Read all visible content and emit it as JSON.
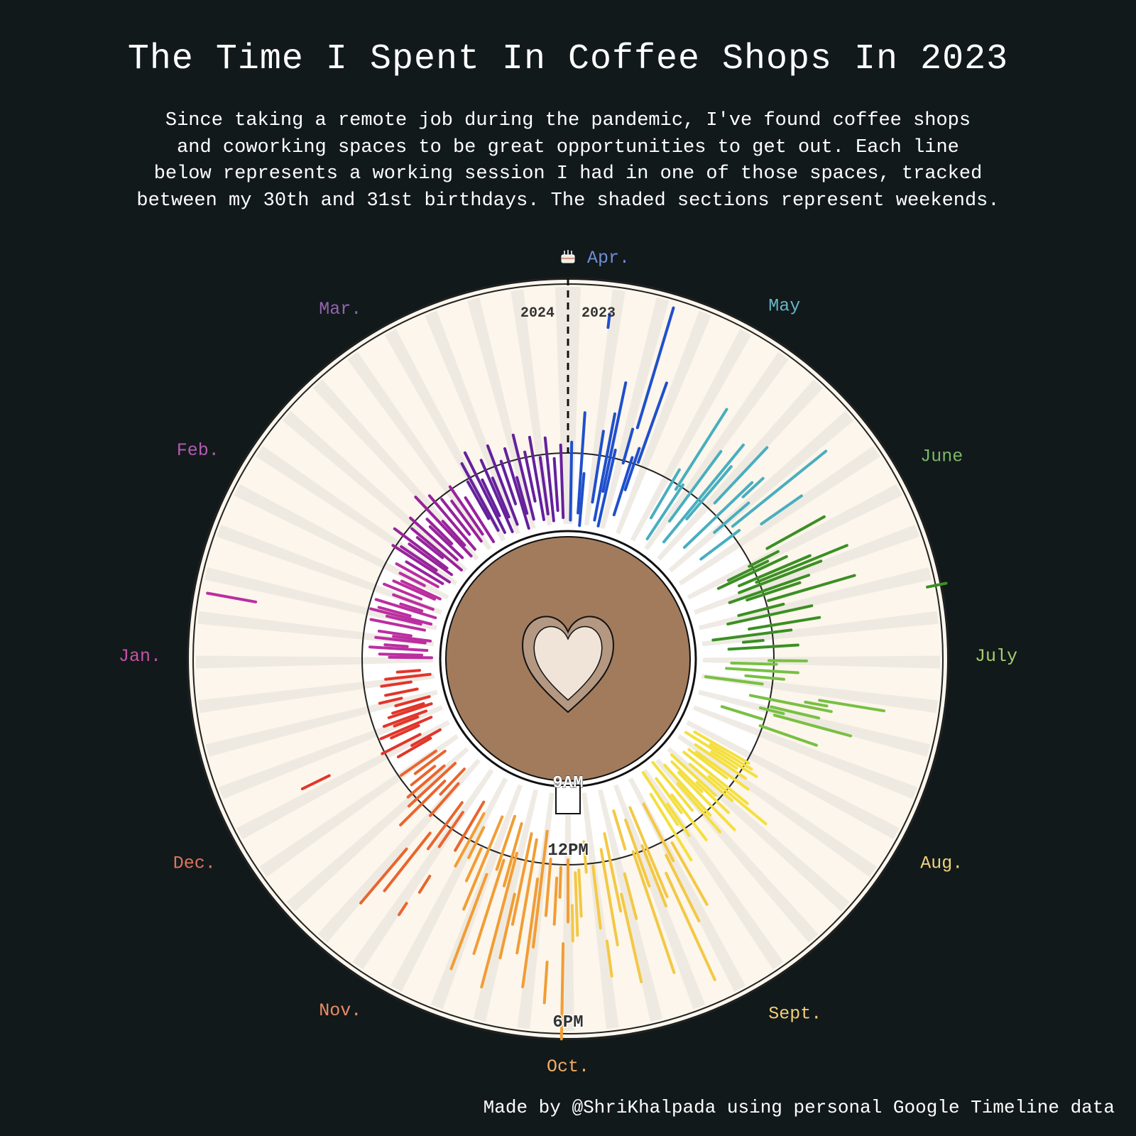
{
  "title": "The Time I Spent In Coffee Shops In 2023",
  "subtitle_lines": [
    "Since taking a remote job during the pandemic, I've found coffee shops",
    "and coworking spaces to be great opportunities to get out. Each line",
    "below represents a working session I had in one of those spaces, tracked",
    "between my 30th and 31st birthdays. The shaded sections represent weekends."
  ],
  "footer": "Made by @ShriKhalpada using personal Google Timeline data",
  "colors": {
    "background": "#12191b",
    "dial_face": "#fcf6ec",
    "weekend_shade": "#ece8df",
    "inner_face": "#ffffff",
    "inner_weekend": "#efefef",
    "cup": "#a27b5c",
    "heart_outer": "#b49882",
    "heart_inner": "#f0e4d9"
  },
  "chart_data": {
    "type": "radial-timeline",
    "angular_axis": "day of year, clockwise from the birthday at top (Apr. 2023 → Mar. 2024)",
    "radial_axis": "time of day",
    "year_labels": {
      "left": "2024",
      "right": "2023"
    },
    "birthday_icon": "birthday-cake-icon",
    "time_labels": [
      "9AM",
      "12PM",
      "6PM"
    ],
    "time_hours": [
      9,
      12,
      18
    ],
    "month_labels": [
      {
        "label": "Apr.",
        "color": "#6f8fd6",
        "day": 0
      },
      {
        "label": "May",
        "color": "#66b6c8",
        "day": 30
      },
      {
        "label": "June",
        "color": "#7cb867",
        "day": 61
      },
      {
        "label": "July",
        "color": "#a5cf6e",
        "day": 91
      },
      {
        "label": "Aug.",
        "color": "#f0d37a",
        "day": 122
      },
      {
        "label": "Sept.",
        "color": "#f2cd76",
        "day": 153
      },
      {
        "label": "Oct.",
        "color": "#f3ae63",
        "day": 183
      },
      {
        "label": "Nov.",
        "color": "#ec8d63",
        "day": 214
      },
      {
        "label": "Dec.",
        "color": "#e0735e",
        "day": 244
      },
      {
        "label": "Jan.",
        "color": "#c552a7",
        "day": 275
      },
      {
        "label": "Feb.",
        "color": "#b35bb2",
        "day": 306
      },
      {
        "label": "Mar.",
        "color": "#9364b0",
        "day": 335
      }
    ],
    "month_series_colors": [
      {
        "month": "Apr.",
        "color": "#1f4fcc"
      },
      {
        "month": "May",
        "color": "#48aebf"
      },
      {
        "month": "June",
        "color": "#3b8f23"
      },
      {
        "month": "July",
        "color": "#78c043"
      },
      {
        "month": "Aug.",
        "color": "#f4df3f"
      },
      {
        "month": "Sept.",
        "color": "#f3c845"
      },
      {
        "month": "Oct.",
        "color": "#f19d34"
      },
      {
        "month": "Nov.",
        "color": "#e9652e"
      },
      {
        "month": "Dec.",
        "color": "#e2352a"
      },
      {
        "month": "Jan.",
        "color": "#bb2ea0"
      },
      {
        "month": "Feb.",
        "color": "#98229c"
      },
      {
        "month": "Mar.",
        "color": "#65209c"
      }
    ],
    "sessions": [
      {
        "day": 1,
        "start": 9.3,
        "end": 12.4
      },
      {
        "day": 4,
        "start": 9.6,
        "end": 13.5
      },
      {
        "day": 5,
        "start": 9.1,
        "end": 11.2
      },
      {
        "day": 7,
        "start": 16.7,
        "end": 17.2
      },
      {
        "day": 9,
        "start": 10.1,
        "end": 12.9
      },
      {
        "day": 11,
        "start": 9.4,
        "end": 13.6
      },
      {
        "day": 12,
        "start": 10.6,
        "end": 14.8
      },
      {
        "day": 13,
        "start": 9.2,
        "end": 12.3
      },
      {
        "day": 16,
        "start": 11.9,
        "end": 13.2
      },
      {
        "day": 17,
        "start": 13.3,
        "end": 17.9
      },
      {
        "day": 18,
        "start": 9.8,
        "end": 12.2
      },
      {
        "day": 19,
        "start": 10.9,
        "end": 12.6
      },
      {
        "day": 20,
        "start": 12.1,
        "end": 15.2
      },
      {
        "day": 31,
        "start": 10.3,
        "end": 12.5
      },
      {
        "day": 33,
        "start": 11.8,
        "end": 15.3
      },
      {
        "day": 34,
        "start": 9.5,
        "end": 12.1
      },
      {
        "day": 37,
        "start": 10.6,
        "end": 13.9
      },
      {
        "day": 40,
        "start": 9.8,
        "end": 14.6
      },
      {
        "day": 41,
        "start": 11.1,
        "end": 13.7
      },
      {
        "day": 44,
        "start": 12.3,
        "end": 15.1
      },
      {
        "day": 47,
        "start": 10.2,
        "end": 13.8
      },
      {
        "day": 48,
        "start": 13.2,
        "end": 14.2
      },
      {
        "day": 50,
        "start": 11.5,
        "end": 13.2
      },
      {
        "day": 52,
        "start": 12.2,
        "end": 16.6
      },
      {
        "day": 54,
        "start": 10.4,
        "end": 12.3
      },
      {
        "day": 56,
        "start": 13.1,
        "end": 14.9
      },
      {
        "day": 62,
        "start": 12.8,
        "end": 15.2
      },
      {
        "day": 64,
        "start": 11.9,
        "end": 13.1
      },
      {
        "day": 65,
        "start": 10.9,
        "end": 12.6
      },
      {
        "day": 66,
        "start": 10.4,
        "end": 13.3
      },
      {
        "day": 68,
        "start": 11.2,
        "end": 14.1
      },
      {
        "day": 69,
        "start": 11.9,
        "end": 15.5
      },
      {
        "day": 70,
        "start": 11.1,
        "end": 14.4
      },
      {
        "day": 72,
        "start": 10.6,
        "end": 13.8
      },
      {
        "day": 73,
        "start": 11.3,
        "end": 13.4
      },
      {
        "day": 75,
        "start": 12.1,
        "end": 15.4
      },
      {
        "day": 77,
        "start": 10.8,
        "end": 12.6
      },
      {
        "day": 79,
        "start": 10.3,
        "end": 13.6
      },
      {
        "day": 80,
        "start": 17.9,
        "end": 18.6
      },
      {
        "day": 82,
        "start": 11.1,
        "end": 13.8
      },
      {
        "day": 84,
        "start": 9.6,
        "end": 12.7
      },
      {
        "day": 86,
        "start": 10.8,
        "end": 11.6
      },
      {
        "day": 88,
        "start": 10.2,
        "end": 12.9
      },
      {
        "day": 92,
        "start": 11.8,
        "end": 13.2
      },
      {
        "day": 93,
        "start": 10.3,
        "end": 12.1
      },
      {
        "day": 95,
        "start": 10.1,
        "end": 12.9
      },
      {
        "day": 97,
        "start": 10.9,
        "end": 12.4
      },
      {
        "day": 99,
        "start": 9.3,
        "end": 11.6
      },
      {
        "day": 101,
        "start": 13.8,
        "end": 16.2
      },
      {
        "day": 102,
        "start": 13.3,
        "end": 14.1
      },
      {
        "day": 103,
        "start": 11.2,
        "end": 14.3
      },
      {
        "day": 105,
        "start": 12.1,
        "end": 13.9
      },
      {
        "day": 106,
        "start": 11.7,
        "end": 12.6
      },
      {
        "day": 107,
        "start": 12.3,
        "end": 15.2
      },
      {
        "day": 109,
        "start": 10.2,
        "end": 11.9
      },
      {
        "day": 111,
        "start": 11.9,
        "end": 14.1
      },
      {
        "day": 122,
        "start": 9.6,
        "end": 12.1
      },
      {
        "day": 123,
        "start": 10.4,
        "end": 12.3
      },
      {
        "day": 124,
        "start": 9.3,
        "end": 12.6
      },
      {
        "day": 125,
        "start": 10.6,
        "end": 11.8
      },
      {
        "day": 126,
        "start": 9.9,
        "end": 12.3
      },
      {
        "day": 128,
        "start": 10.1,
        "end": 12.6
      },
      {
        "day": 129,
        "start": 9.8,
        "end": 11.7
      },
      {
        "day": 131,
        "start": 9.7,
        "end": 12.9
      },
      {
        "day": 132,
        "start": 11.1,
        "end": 13.9
      },
      {
        "day": 133,
        "start": 10.2,
        "end": 12.4
      },
      {
        "day": 135,
        "start": 9.4,
        "end": 11.8
      },
      {
        "day": 136,
        "start": 10.9,
        "end": 12.6
      },
      {
        "day": 137,
        "start": 9.6,
        "end": 11.3
      },
      {
        "day": 138,
        "start": 10.1,
        "end": 13.2
      },
      {
        "day": 140,
        "start": 9.5,
        "end": 12.2
      },
      {
        "day": 141,
        "start": 10.4,
        "end": 12.9
      },
      {
        "day": 143,
        "start": 9.1,
        "end": 11.6
      },
      {
        "day": 145,
        "start": 10.6,
        "end": 12.8
      },
      {
        "day": 146,
        "start": 9.7,
        "end": 11.4
      },
      {
        "day": 148,
        "start": 10.8,
        "end": 12.3
      },
      {
        "day": 149,
        "start": 9.2,
        "end": 11.7
      },
      {
        "day": 151,
        "start": 10.1,
        "end": 13.1
      },
      {
        "day": 153,
        "start": 12.2,
        "end": 14.8
      },
      {
        "day": 155,
        "start": 10.3,
        "end": 12.8
      },
      {
        "day": 156,
        "start": 12.5,
        "end": 15.2
      },
      {
        "day": 158,
        "start": 13.1,
        "end": 17.4
      },
      {
        "day": 160,
        "start": 10.2,
        "end": 13.9
      },
      {
        "day": 161,
        "start": 11.8,
        "end": 14.2
      },
      {
        "day": 163,
        "start": 10.6,
        "end": 13.3
      },
      {
        "day": 164,
        "start": 11.9,
        "end": 16.6
      },
      {
        "day": 166,
        "start": 10.1,
        "end": 11.7
      },
      {
        "day": 168,
        "start": 12.6,
        "end": 14.3
      },
      {
        "day": 170,
        "start": 13.3,
        "end": 16.6
      },
      {
        "day": 171,
        "start": 10.9,
        "end": 13.9
      },
      {
        "day": 173,
        "start": 11.5,
        "end": 15.1
      },
      {
        "day": 175,
        "start": 14.9,
        "end": 16.2
      },
      {
        "day": 176,
        "start": 12.1,
        "end": 14.4
      },
      {
        "day": 178,
        "start": 11.1,
        "end": 12.3
      },
      {
        "day": 180,
        "start": 12.2,
        "end": 13.9
      },
      {
        "day": 181,
        "start": 12.3,
        "end": 14.6
      },
      {
        "day": 182,
        "start": 13.5,
        "end": 14.8
      },
      {
        "day": 183,
        "start": 11.8,
        "end": 14.1
      },
      {
        "day": 184,
        "start": 14.9,
        "end": 18.4
      },
      {
        "day": 185,
        "start": 12.1,
        "end": 13.2
      },
      {
        "day": 186,
        "start": 12.5,
        "end": 14.2
      },
      {
        "day": 187,
        "start": 15.6,
        "end": 17.1
      },
      {
        "day": 188,
        "start": 11.8,
        "end": 13.9
      },
      {
        "day": 190,
        "start": 10.7,
        "end": 15.1
      },
      {
        "day": 191,
        "start": 12.6,
        "end": 16.6
      },
      {
        "day": 193,
        "start": 11.1,
        "end": 15.4
      },
      {
        "day": 195,
        "start": 10.9,
        "end": 14.4
      },
      {
        "day": 196,
        "start": 13.3,
        "end": 15.7
      },
      {
        "day": 198,
        "start": 11.8,
        "end": 16.9
      },
      {
        "day": 199,
        "start": 10.6,
        "end": 13.1
      },
      {
        "day": 201,
        "start": 12.2,
        "end": 15.8
      },
      {
        "day": 202,
        "start": 10.4,
        "end": 12.6
      },
      {
        "day": 204,
        "start": 12.9,
        "end": 16.6
      },
      {
        "day": 206,
        "start": 10.6,
        "end": 14.4
      },
      {
        "day": 208,
        "start": 12.1,
        "end": 13.4
      },
      {
        "day": 210,
        "start": 11.3,
        "end": 12.6
      },
      {
        "day": 212,
        "start": 10.8,
        "end": 13.1
      },
      {
        "day": 214,
        "start": 10.4,
        "end": 12.6
      },
      {
        "day": 216,
        "start": 13.9,
        "end": 14.6
      },
      {
        "day": 217,
        "start": 15.2,
        "end": 15.7
      },
      {
        "day": 218,
        "start": 11.2,
        "end": 12.8
      },
      {
        "day": 220,
        "start": 10.9,
        "end": 13.1
      },
      {
        "day": 222,
        "start": 12.6,
        "end": 15.3
      },
      {
        "day": 224,
        "start": 13.6,
        "end": 16.2
      },
      {
        "day": 225,
        "start": 10.4,
        "end": 12.1
      },
      {
        "day": 227,
        "start": 9.8,
        "end": 11.2
      },
      {
        "day": 229,
        "start": 10.7,
        "end": 13.1
      },
      {
        "day": 231,
        "start": 9.9,
        "end": 12.4
      },
      {
        "day": 233,
        "start": 10.3,
        "end": 12.2
      },
      {
        "day": 235,
        "start": 10.6,
        "end": 11.8
      },
      {
        "day": 237,
        "start": 9.9,
        "end": 11.4
      },
      {
        "day": 239,
        "start": 10.2,
        "end": 11.9
      },
      {
        "day": 244,
        "start": 10.1,
        "end": 11.6
      },
      {
        "day": 245,
        "start": 9.6,
        "end": 10.9
      },
      {
        "day": 247,
        "start": 10.4,
        "end": 12.1
      },
      {
        "day": 248,
        "start": 14.2,
        "end": 15.3
      },
      {
        "day": 250,
        "start": 10.3,
        "end": 11.5
      },
      {
        "day": 251,
        "start": 9.7,
        "end": 11.9
      },
      {
        "day": 253,
        "start": 10.2,
        "end": 11.2
      },
      {
        "day": 254,
        "start": 9.8,
        "end": 11.6
      },
      {
        "day": 256,
        "start": 9.5,
        "end": 11.3
      },
      {
        "day": 257,
        "start": 9.8,
        "end": 11.1
      },
      {
        "day": 259,
        "start": 9.5,
        "end": 10.9
      },
      {
        "day": 261,
        "start": 10.6,
        "end": 11.5
      },
      {
        "day": 263,
        "start": 9.9,
        "end": 11.2
      },
      {
        "day": 266,
        "start": 10.1,
        "end": 11.3
      },
      {
        "day": 268,
        "start": 9.3,
        "end": 11.1
      },
      {
        "day": 270,
        "start": 9.7,
        "end": 10.6
      },
      {
        "day": 275,
        "start": 9.2,
        "end": 10.9
      },
      {
        "day": 276,
        "start": 9.6,
        "end": 11.3
      },
      {
        "day": 278,
        "start": 9.4,
        "end": 11.7
      },
      {
        "day": 279,
        "start": 10.2,
        "end": 11.1
      },
      {
        "day": 281,
        "start": 9.5,
        "end": 11.5
      },
      {
        "day": 282,
        "start": 9.3,
        "end": 10.8
      },
      {
        "day": 283,
        "start": 10.1,
        "end": 11.4
      },
      {
        "day": 285,
        "start": 16.1,
        "end": 17.9
      },
      {
        "day": 286,
        "start": 9.6,
        "end": 11.8
      },
      {
        "day": 288,
        "start": 9.8,
        "end": 11.2
      },
      {
        "day": 289,
        "start": 9.4,
        "end": 11.9
      },
      {
        "day": 290,
        "start": 10.3,
        "end": 11.6
      },
      {
        "day": 292,
        "start": 9.3,
        "end": 11.8
      },
      {
        "day": 293,
        "start": 9.9,
        "end": 10.8
      },
      {
        "day": 295,
        "start": 9.5,
        "end": 11.2
      },
      {
        "day": 297,
        "start": 10.1,
        "end": 11.7
      },
      {
        "day": 299,
        "start": 9.6,
        "end": 11.4
      },
      {
        "day": 300,
        "start": 9.4,
        "end": 11.1
      },
      {
        "day": 302,
        "start": 10.2,
        "end": 11.3
      },
      {
        "day": 304,
        "start": 9.7,
        "end": 11.6
      },
      {
        "day": 306,
        "start": 9.6,
        "end": 11.3
      },
      {
        "day": 308,
        "start": 9.4,
        "end": 12.1
      },
      {
        "day": 309,
        "start": 10.1,
        "end": 11.8
      },
      {
        "day": 311,
        "start": 9.5,
        "end": 11.6
      },
      {
        "day": 312,
        "start": 9.8,
        "end": 12.4
      },
      {
        "day": 314,
        "start": 10.2,
        "end": 11.5
      },
      {
        "day": 315,
        "start": 9.3,
        "end": 11.9
      },
      {
        "day": 317,
        "start": 9.7,
        "end": 12.2
      },
      {
        "day": 319,
        "start": 9.6,
        "end": 11.4
      },
      {
        "day": 320,
        "start": 10.3,
        "end": 11.7
      },
      {
        "day": 322,
        "start": 9.4,
        "end": 12.6
      },
      {
        "day": 323,
        "start": 9.9,
        "end": 11.2
      },
      {
        "day": 325,
        "start": 9.5,
        "end": 12.3
      },
      {
        "day": 327,
        "start": 10.1,
        "end": 11.9
      },
      {
        "day": 329,
        "start": 9.6,
        "end": 11.6
      },
      {
        "day": 331,
        "start": 9.8,
        "end": 12.1
      },
      {
        "day": 333,
        "start": 9.3,
        "end": 11.4
      },
      {
        "day": 336,
        "start": 10.2,
        "end": 11.9
      },
      {
        "day": 337,
        "start": 9.6,
        "end": 12.6
      },
      {
        "day": 339,
        "start": 9.4,
        "end": 12.9
      },
      {
        "day": 340,
        "start": 10.1,
        "end": 11.7
      },
      {
        "day": 342,
        "start": 9.3,
        "end": 12.4
      },
      {
        "day": 343,
        "start": 9.9,
        "end": 11.6
      },
      {
        "day": 345,
        "start": 9.5,
        "end": 12.8
      },
      {
        "day": 347,
        "start": 10.3,
        "end": 12.1
      },
      {
        "day": 349,
        "start": 9.2,
        "end": 12.5
      },
      {
        "day": 350,
        "start": 9.8,
        "end": 11.3
      },
      {
        "day": 352,
        "start": 9.5,
        "end": 12.9
      },
      {
        "day": 354,
        "start": 10.2,
        "end": 12.2
      },
      {
        "day": 356,
        "start": 9.4,
        "end": 12.7
      },
      {
        "day": 358,
        "start": 9.6,
        "end": 11.9
      },
      {
        "day": 360,
        "start": 9.3,
        "end": 12.6
      },
      {
        "day": 362,
        "start": 9.7,
        "end": 11.8
      },
      {
        "day": 364,
        "start": 9.4,
        "end": 12.3
      }
    ]
  }
}
